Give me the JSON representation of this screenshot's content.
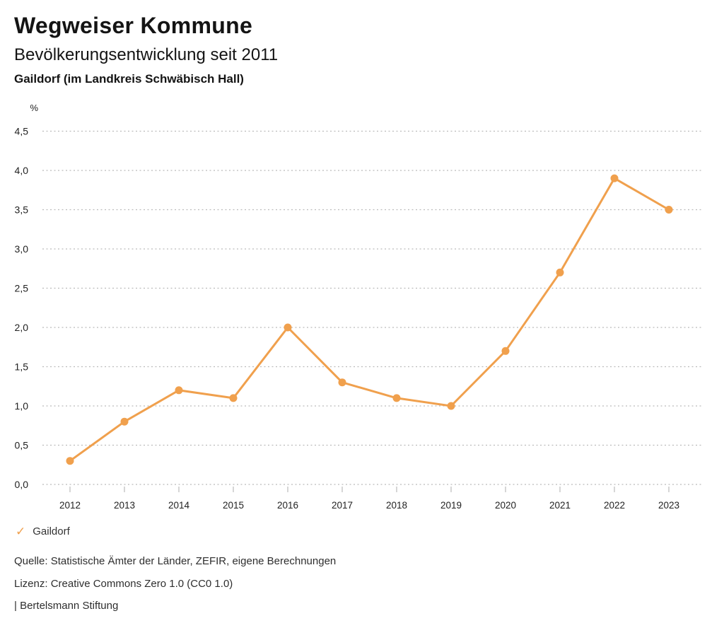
{
  "header": {
    "title": "Wegweiser Kommune",
    "subtitle": "Bevölkerungsentwicklung seit 2011",
    "location": "Gaildorf (im Landkreis Schwäbisch Hall)"
  },
  "chart_data": {
    "type": "line",
    "title": "Bevölkerungsentwicklung seit 2011",
    "subtitle": "Gaildorf (im Landkreis Schwäbisch Hall)",
    "unit_label": "%",
    "x": [
      2012,
      2013,
      2014,
      2015,
      2016,
      2017,
      2018,
      2019,
      2020,
      2021,
      2022,
      2023
    ],
    "series": [
      {
        "name": "Gaildorf",
        "values": [
          0.3,
          0.8,
          1.2,
          1.1,
          2.0,
          1.3,
          1.1,
          1.0,
          1.7,
          2.7,
          3.9,
          3.5
        ],
        "color": "#F0A04D"
      }
    ],
    "ylim": [
      0,
      4.5
    ],
    "ytick_step": 0.5,
    "ytick_labels": [
      "0,0",
      "0,5",
      "1,0",
      "1,5",
      "2,0",
      "2,5",
      "3,0",
      "3,5",
      "4,0",
      "4,5"
    ],
    "grid": "horizontal-dotted",
    "legend_position": "bottom-left"
  },
  "legend": {
    "check_icon": "✓",
    "label": "Gaildorf"
  },
  "footer": {
    "source": "Quelle: Statistische Ämter der Länder, ZEFIR, eigene Berechnungen",
    "license": "Lizenz: Creative Commons Zero 1.0 (CC0 1.0)",
    "attribution": "| Bertelsmann Stiftung"
  },
  "colors": {
    "accent": "#F0A04D",
    "grid": "#BBBBBB",
    "tick": "#BBBBBB",
    "axis_text": "#222222"
  }
}
